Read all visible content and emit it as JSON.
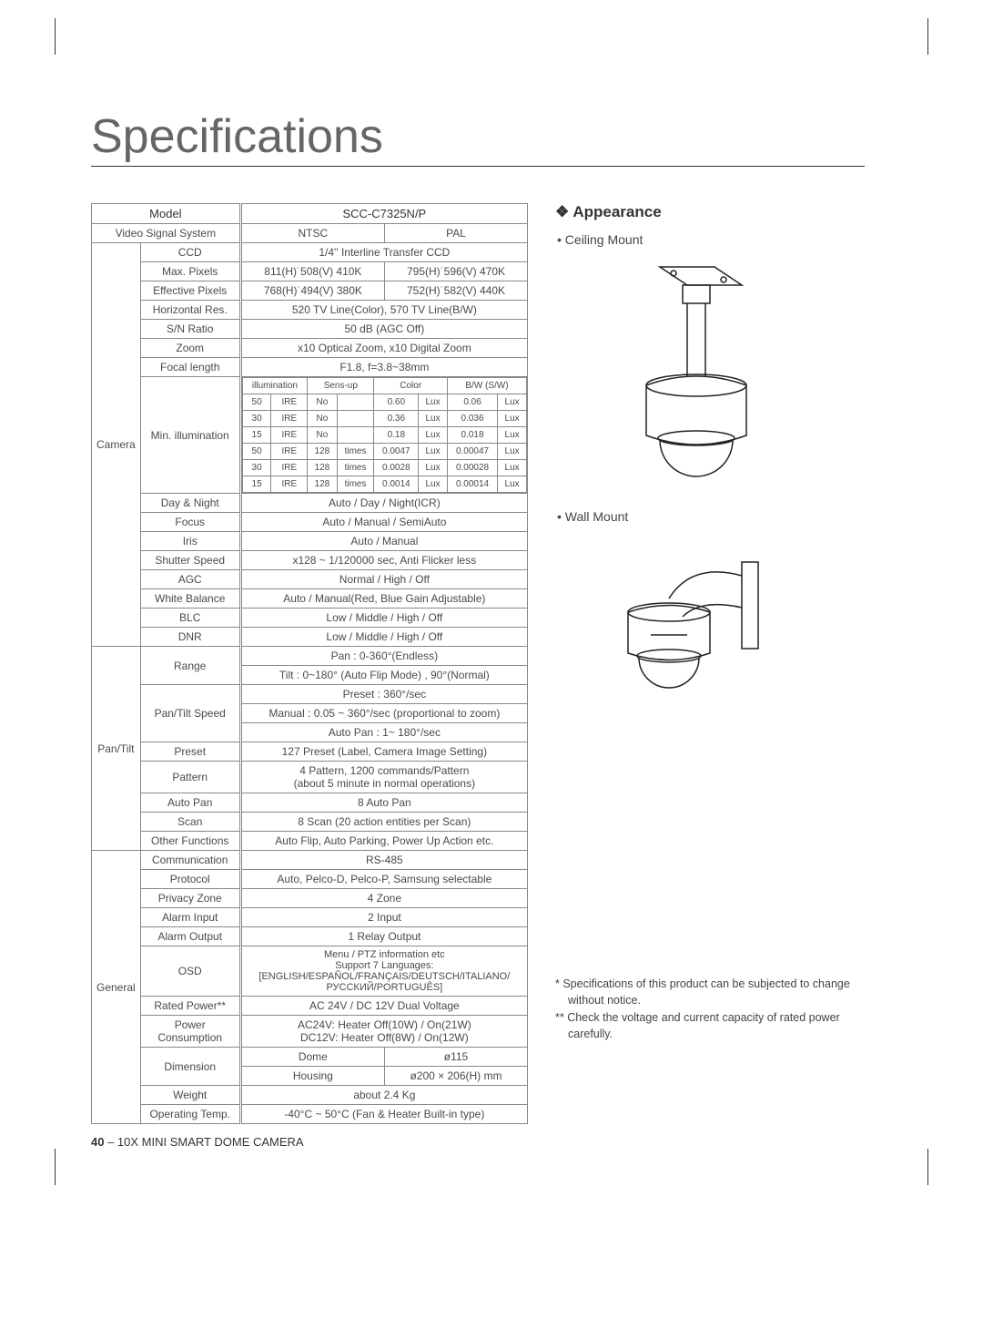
{
  "page_title": "Specifications",
  "footer_page": "40",
  "footer_text": " – 10X MINI SMART DOME CAMERA",
  "appearance": {
    "heading": "Appearance",
    "ceiling_label": "Ceiling Mount",
    "wall_label": "Wall Mount",
    "note1": "*   Specifications of this product can be subjected to change without notice.",
    "note2": "** Check the voltage and current capacity of rated power carefully."
  },
  "header": {
    "model": "Model",
    "model_val": "SCC-C7325N/P",
    "vss": "Video Signal System",
    "ntsc": "NTSC",
    "pal": "PAL"
  },
  "camera": {
    "group": "Camera",
    "ccd": "CCD",
    "ccd_v": "1/4'' Interline Transfer CCD",
    "maxpx": "Max. Pixels",
    "maxpx_a": "811(H)˙508(V) 410K",
    "maxpx_b": "795(H)˙596(V) 470K",
    "effpx": "Effective Pixels",
    "effpx_a": "768(H)˙494(V) 380K",
    "effpx_b": "752(H)˙582(V) 440K",
    "hres": "Horizontal Res.",
    "hres_v": "520 TV Line(Color), 570 TV Line(B/W)",
    "sn": "S/N Ratio",
    "sn_v": "50 dB (AGC Off)",
    "zoom": "Zoom",
    "zoom_v": "x10 Optical Zoom, x10 Digital Zoom",
    "focal": "Focal length",
    "focal_v": "F1.8, f=3.8~38mm",
    "minill": "Min. illumination",
    "daynight": "Day & Night",
    "daynight_v": "Auto / Day / Night(ICR)",
    "focus": "Focus",
    "focus_v": "Auto / Manual / SemiAuto",
    "iris": "Iris",
    "iris_v": "Auto / Manual",
    "shutter": "Shutter Speed",
    "shutter_v": "x128 ~ 1/120000 sec, Anti Flicker less",
    "agc": "AGC",
    "agc_v": "Normal / High / Off",
    "wb": "White Balance",
    "wb_v": "Auto / Manual(Red, Blue Gain Adjustable)",
    "blc": "BLC",
    "blc_v": "Low / Middle / High / Off",
    "dnr": "DNR",
    "dnr_v": "Low / Middle / High / Off"
  },
  "illum": {
    "h1": "illumination",
    "h2": "Sens-up",
    "h3": "Color",
    "h4": "B/W (S/W)",
    "rows": [
      {
        "c1": "50",
        "c2": "IRE",
        "c3": "No",
        "c4": "",
        "c5": "0.60",
        "c6": "Lux",
        "c7": "0.06",
        "c8": "Lux"
      },
      {
        "c1": "30",
        "c2": "IRE",
        "c3": "No",
        "c4": "",
        "c5": "0.36",
        "c6": "Lux",
        "c7": "0.036",
        "c8": "Lux"
      },
      {
        "c1": "15",
        "c2": "IRE",
        "c3": "No",
        "c4": "",
        "c5": "0.18",
        "c6": "Lux",
        "c7": "0.018",
        "c8": "Lux"
      },
      {
        "c1": "50",
        "c2": "IRE",
        "c3": "128",
        "c4": "times",
        "c5": "0.0047",
        "c6": "Lux",
        "c7": "0.00047",
        "c8": "Lux"
      },
      {
        "c1": "30",
        "c2": "IRE",
        "c3": "128",
        "c4": "times",
        "c5": "0.0028",
        "c6": "Lux",
        "c7": "0.00028",
        "c8": "Lux"
      },
      {
        "c1": "15",
        "c2": "IRE",
        "c3": "128",
        "c4": "times",
        "c5": "0.0014",
        "c6": "Lux",
        "c7": "0.00014",
        "c8": "Lux"
      }
    ]
  },
  "pantilt": {
    "group": "Pan/Tilt",
    "range": "Range",
    "range_a": "Pan : 0-360°(Endless)",
    "range_b": "Tilt : 0~180° (Auto Flip Mode) , 90°(Normal)",
    "speed": "Pan/Tilt Speed",
    "speed_a": "Preset : 360°/sec",
    "speed_b": "Manual : 0.05 ~ 360°/sec (proportional to zoom)",
    "speed_c": "Auto Pan : 1~ 180°/sec",
    "preset": "Preset",
    "preset_v": "127 Preset (Label, Camera Image Setting)",
    "pattern": "Pattern",
    "pattern_v": "4 Pattern, 1200 commands/Pattern\n(about 5 minute in normal operations)",
    "autopan": "Auto Pan",
    "autopan_v": "8 Auto Pan",
    "scan": "Scan",
    "scan_v": "8 Scan (20 action entities per Scan)",
    "other": "Other Functions",
    "other_v": "Auto Flip, Auto Parking, Power Up Action etc."
  },
  "general": {
    "group": "General",
    "comm": "Communication",
    "comm_v": "RS-485",
    "proto": "Protocol",
    "proto_v": "Auto, Pelco-D, Pelco-P, Samsung selectable",
    "pz": "Privacy Zone",
    "pz_v": "4 Zone",
    "ai": "Alarm Input",
    "ai_v": "2 Input",
    "ao": "Alarm Output",
    "ao_v": "1 Relay Output",
    "osd": "OSD",
    "osd_v": "Menu / PTZ information etc\nSupport 7 Languages:\n[ENGLISH/ESPAÑOL/FRANÇAIS/DEUTSCH/ITALIANO/\nРУССКИЙ/PORTUGUÊS]",
    "power": "Rated Power**",
    "power_v": "AC 24V / DC 12V Dual Voltage",
    "pcons": "Power Consumption",
    "pcons_v": "AC24V: Heater Off(10W) / On(21W)\nDC12V: Heater Off(8W) / On(12W)",
    "dim": "Dimension",
    "dim_a": "Dome",
    "dim_a_v": "ø115",
    "dim_b": "Housing",
    "dim_b_v": "ø200 × 206(H) mm",
    "weight": "Weight",
    "weight_v": "about 2.4 Kg",
    "optemp": "Operating Temp.",
    "optemp_v": "-40°C ~ 50°C (Fan & Heater Built-in type)"
  }
}
